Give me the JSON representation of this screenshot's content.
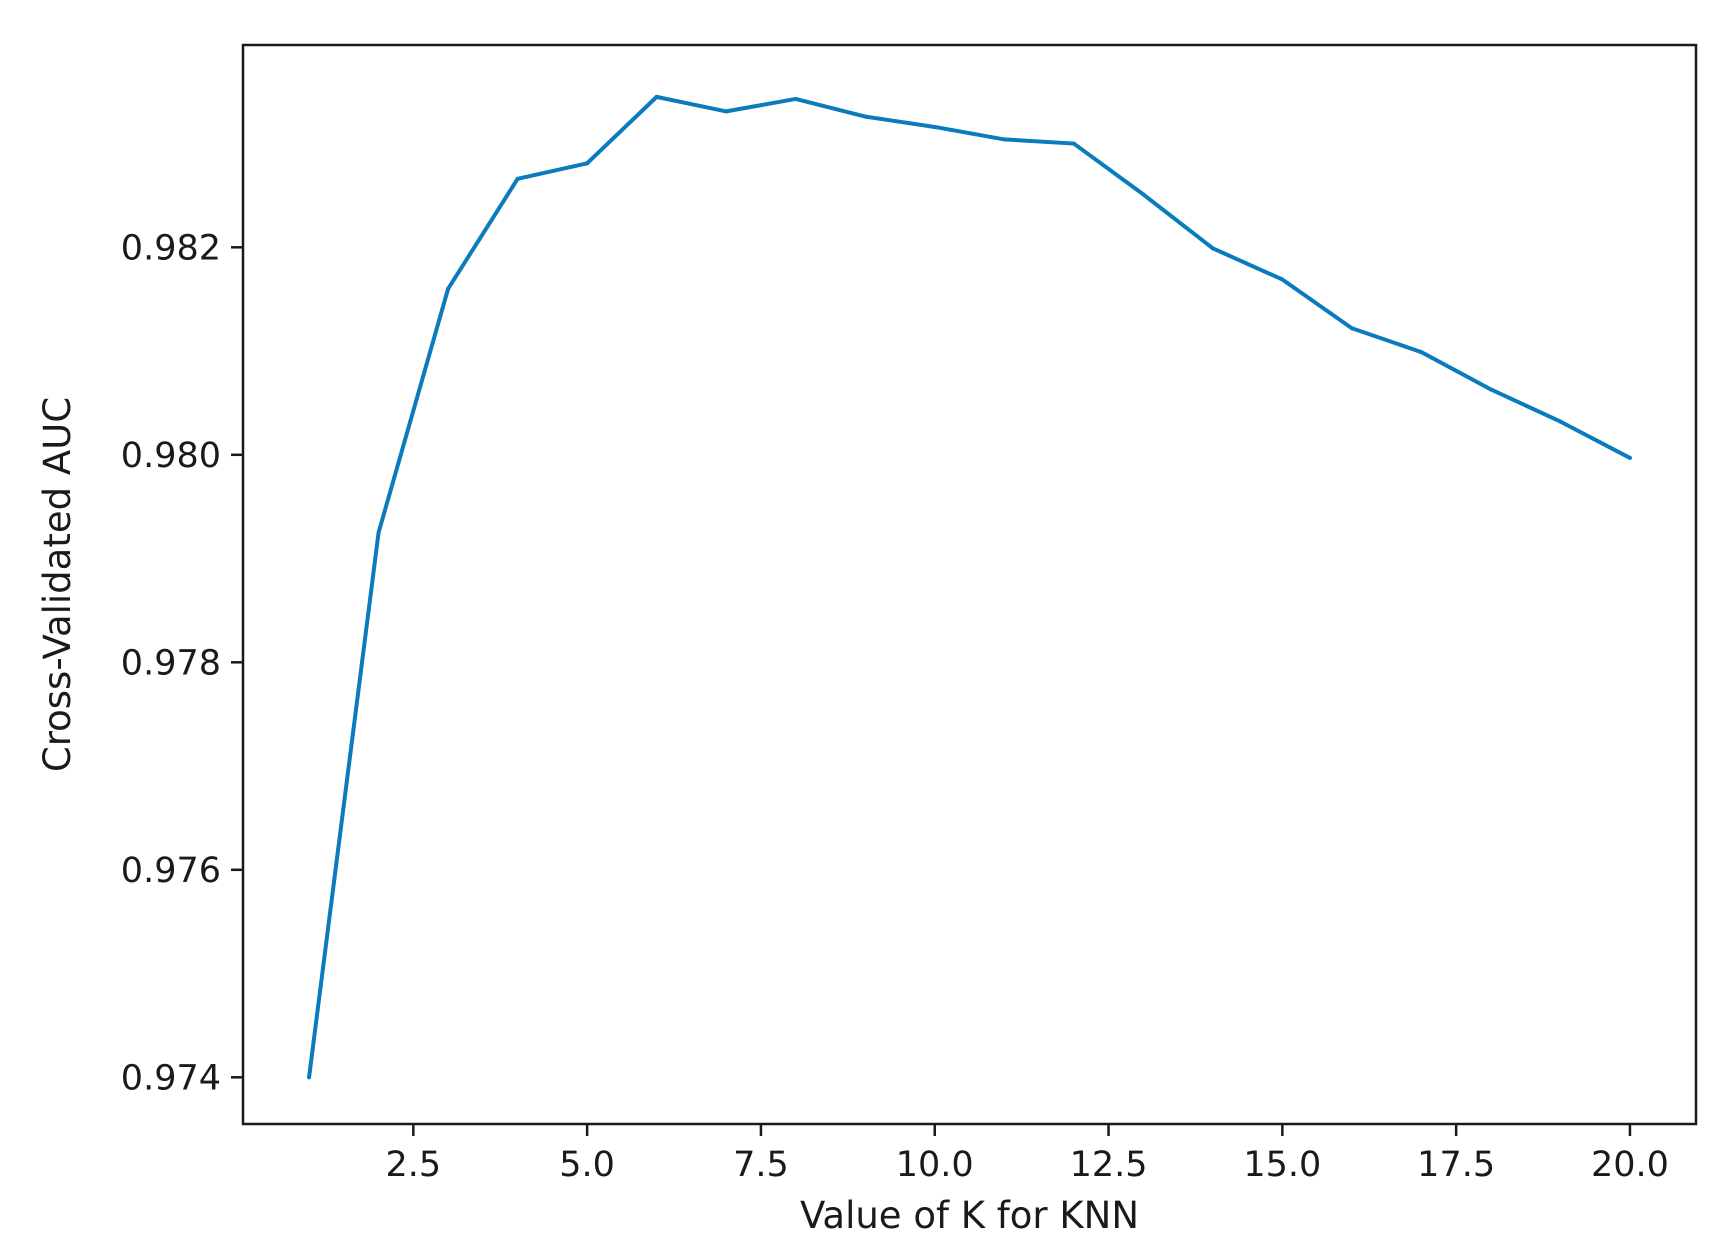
{
  "chart_data": {
    "type": "line",
    "title": "",
    "xlabel": "Value of K for KNN",
    "ylabel": "Cross-Validated AUC",
    "xlim": [
      0.05,
      20.95
    ],
    "ylim": [
      0.97355,
      0.98395
    ],
    "x_ticks": [
      2.5,
      5.0,
      7.5,
      10.0,
      12.5,
      15.0,
      17.5,
      20.0
    ],
    "x_tick_labels": [
      "2.5",
      "5.0",
      "7.5",
      "10.0",
      "12.5",
      "15.0",
      "17.5",
      "20.0"
    ],
    "y_ticks": [
      0.974,
      0.976,
      0.978,
      0.98,
      0.982
    ],
    "y_tick_labels": [
      "0.974",
      "0.976",
      "0.978",
      "0.980",
      "0.982"
    ],
    "grid": false,
    "line_color": "#0a7bbd",
    "series": [
      {
        "x": [
          1,
          2,
          3,
          4,
          5,
          6,
          7,
          8,
          9,
          10,
          11,
          12,
          13,
          14,
          15,
          16,
          17,
          18,
          19,
          20
        ],
        "values": [
          0.974,
          0.97925,
          0.9816,
          0.98266,
          0.98281,
          0.98345,
          0.98331,
          0.98343,
          0.98326,
          0.98316,
          0.98304,
          0.983,
          0.98251,
          0.98199,
          0.98169,
          0.98122,
          0.98099,
          0.98063,
          0.98032,
          0.97997
        ]
      }
    ]
  }
}
